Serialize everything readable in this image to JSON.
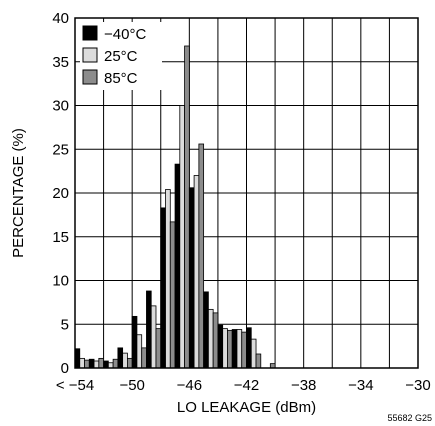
{
  "chart_data": {
    "type": "bar",
    "x": [
      -53.5,
      -52.5,
      -51.5,
      -50.5,
      -49.5,
      -48.5,
      -47.5,
      -46.5,
      -45.5,
      -44.5,
      -43.5,
      -42.5,
      -41.5,
      -40.5,
      -39.5,
      -38.5,
      -37.5,
      -36.5,
      -35.5,
      -34.5,
      -33.5,
      -32.5
    ],
    "series": [
      {
        "name": "−40°C",
        "color": "#000000",
        "values": [
          2.2,
          1.0,
          0.8,
          2.3,
          5.9,
          8.8,
          18.3,
          23.3,
          20.6,
          8.7,
          4.9,
          4.4,
          4.6,
          0.0,
          0.0,
          0.0,
          0.0,
          0.0,
          0.0,
          0.0,
          0.0,
          0.0
        ]
      },
      {
        "name": "25°C",
        "color": "#dcdcdc",
        "values": [
          1.1,
          0.8,
          0.6,
          1.7,
          3.8,
          7.1,
          20.4,
          30.0,
          22.0,
          6.7,
          4.5,
          4.4,
          3.3,
          0.0,
          0.0,
          0.0,
          0.0,
          0.0,
          0.0,
          0.0,
          0.0,
          0.0
        ]
      },
      {
        "name": "85°C",
        "color": "#8c8c8c",
        "values": [
          0.9,
          1.1,
          1.0,
          1.1,
          2.3,
          4.5,
          16.7,
          36.8,
          25.6,
          6.3,
          4.3,
          4.1,
          1.6,
          0.5,
          0.0,
          0.0,
          0.0,
          0.0,
          0.0,
          0.0,
          0.0,
          0.0
        ]
      }
    ],
    "xlabel": "LO LEAKAGE (dBm)",
    "ylabel": "PERCENTAGE (%)",
    "xlim": [
      -54,
      -30
    ],
    "ylim": [
      0,
      40
    ],
    "x_ticks": [
      -54,
      -50,
      -46,
      -42,
      -38,
      -34,
      -30
    ],
    "x_tick_labels": [
      "< −54",
      "−50",
      "−46",
      "−42",
      "−38",
      "−34",
      "−30"
    ],
    "y_ticks": [
      0,
      5,
      10,
      15,
      20,
      25,
      30,
      35,
      40
    ],
    "y_tick_labels": [
      "0",
      "5",
      "10",
      "15",
      "20",
      "25",
      "30",
      "35",
      "40"
    ],
    "grid": true,
    "legend_position": "top-left",
    "annotation": "55682 G25"
  }
}
